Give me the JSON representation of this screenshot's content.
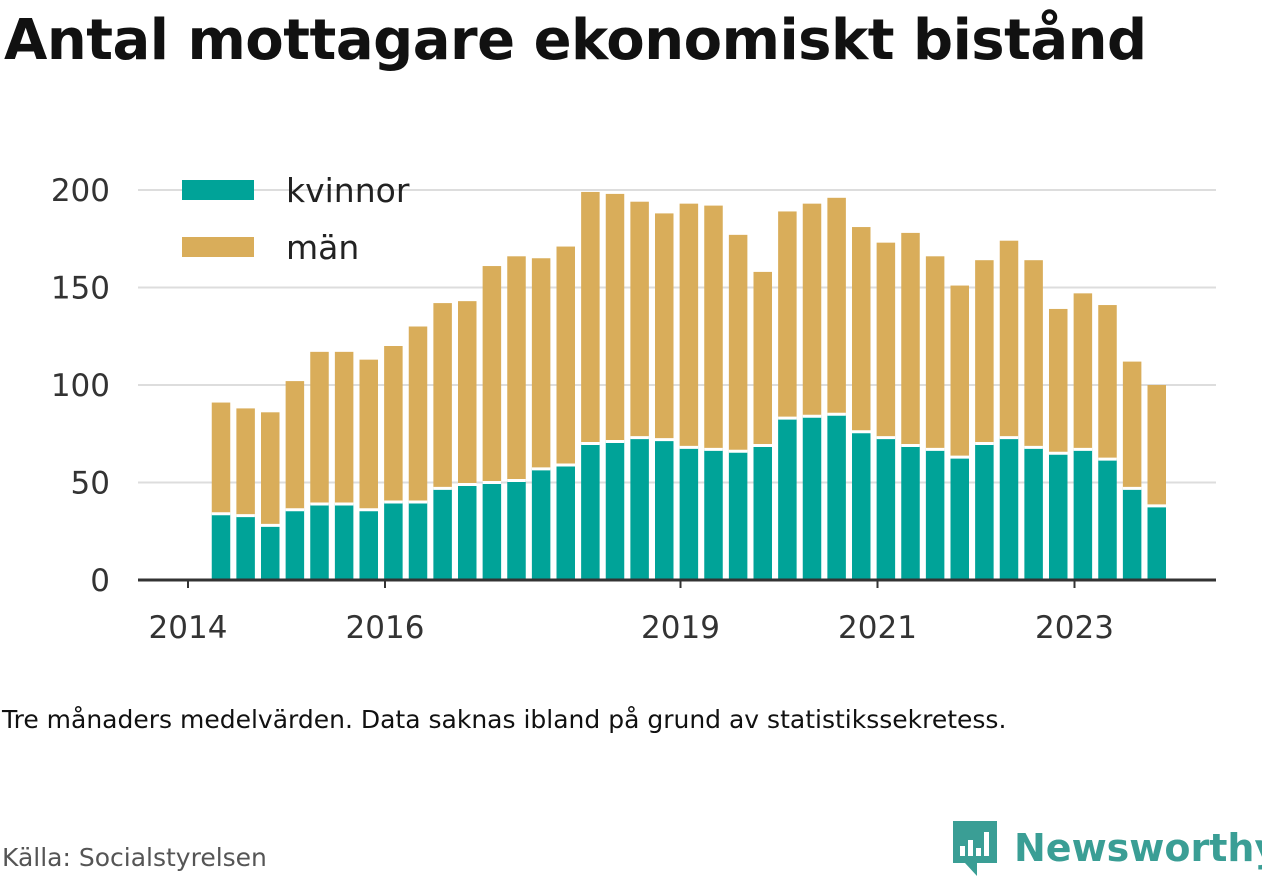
{
  "title": "Antal mottagare ekonomiskt bistånd",
  "note": "Tre månaders medelvärden. Data saknas ibland på grund av statistikssekretess.",
  "source": "Källa: Socialstyrelsen",
  "brand": {
    "name": "Newsworthy",
    "icon": "newsworthy-logo-icon",
    "color": "#3a9e95"
  },
  "chart_data": {
    "type": "bar",
    "stacked": true,
    "ylim": [
      0,
      200
    ],
    "yticks": [
      0,
      50,
      100,
      150,
      200
    ],
    "xtick_labels": [
      "2014",
      "2016",
      "2019",
      "2021",
      "2023"
    ],
    "x_start_year": 2014,
    "x_period": "quarter",
    "grid": true,
    "legend_placement": "top-left",
    "colors": {
      "kvinnor": "#00a398",
      "män": "#d9ad5a"
    },
    "series": [
      {
        "name": "kvinnor",
        "color": "#00a398",
        "values": [
          34,
          33,
          28,
          36,
          39,
          39,
          36,
          40,
          40,
          47,
          49,
          50,
          51,
          57,
          59,
          70,
          71,
          73,
          72,
          68,
          67,
          66,
          69,
          83,
          84,
          85,
          76,
          73,
          69,
          67,
          63,
          70,
          73,
          68,
          65,
          67,
          62,
          47,
          38
        ]
      },
      {
        "name": "män",
        "color": "#d9ad5a",
        "values": [
          57,
          55,
          58,
          66,
          78,
          78,
          77,
          80,
          90,
          95,
          94,
          111,
          115,
          108,
          112,
          129,
          127,
          121,
          116,
          125,
          125,
          111,
          89,
          106,
          109,
          111,
          105,
          100,
          109,
          99,
          88,
          94,
          101,
          96,
          74,
          80,
          79,
          65,
          62
        ]
      }
    ]
  }
}
